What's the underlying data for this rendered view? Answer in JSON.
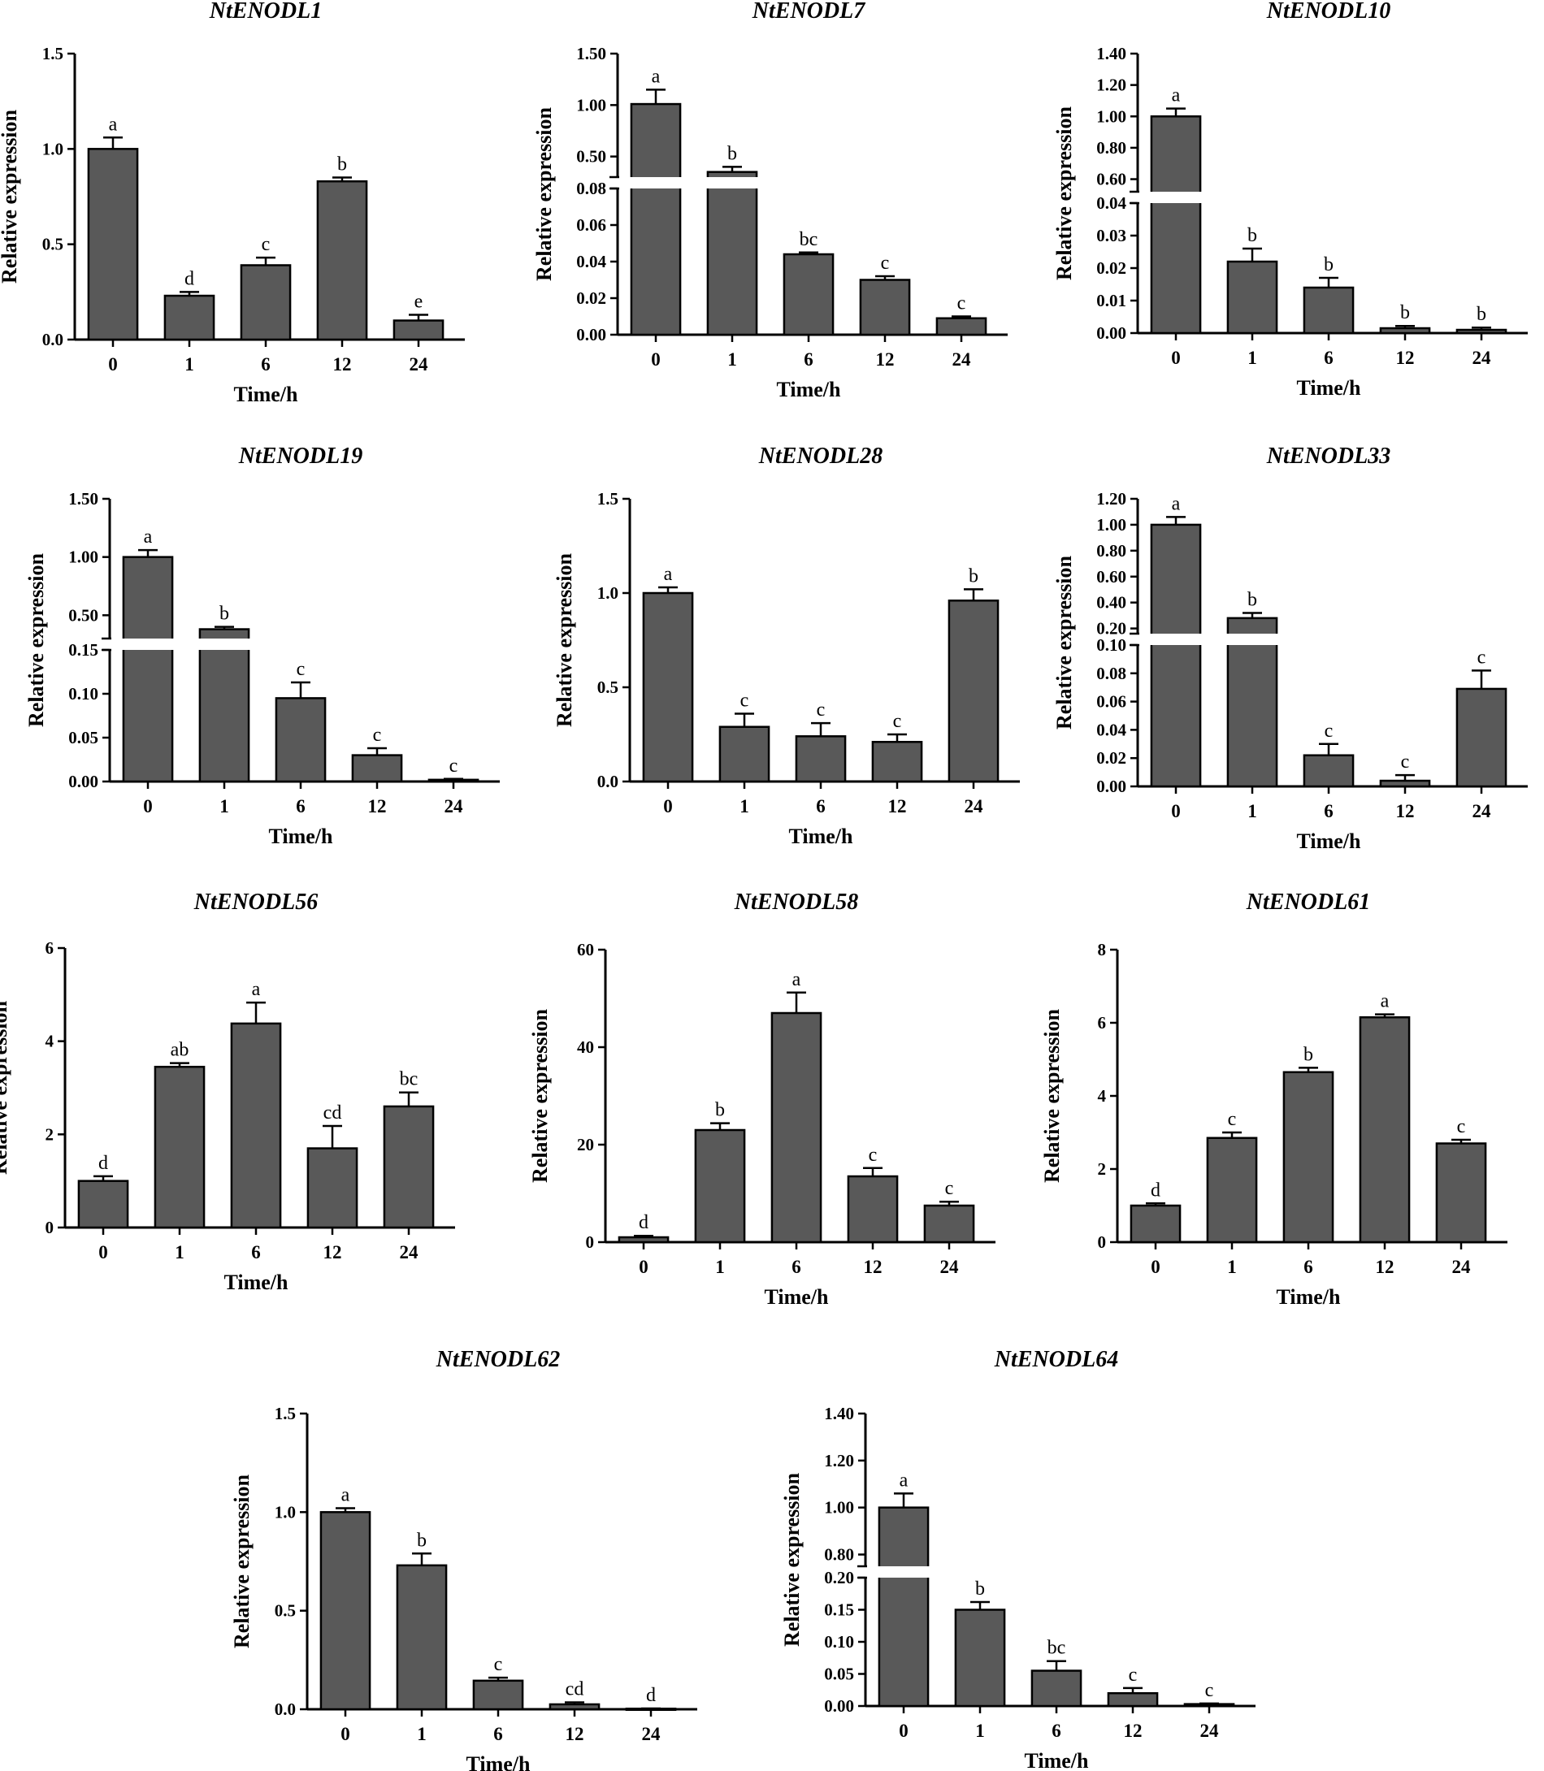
{
  "figure": {
    "x_categories": [
      "0",
      "1",
      "6",
      "12",
      "24"
    ]
  },
  "chart_data": [
    {
      "type": "bar",
      "title": "NtENODL1",
      "xlabel": "Time/h",
      "ylabel": "Relative expression",
      "categories": [
        "0",
        "1",
        "6",
        "12",
        "24"
      ],
      "values": [
        1.0,
        0.23,
        0.39,
        0.83,
        0.1
      ],
      "errors": [
        0.06,
        0.02,
        0.04,
        0.02,
        0.03
      ],
      "letters": [
        "a",
        "d",
        "c",
        "b",
        "e"
      ],
      "ylim": [
        0,
        1.5
      ],
      "yticks": [
        "0.0",
        "0.5",
        "1.0",
        "1.5"
      ]
    },
    {
      "type": "bar",
      "title": "NtENODL7",
      "xlabel": "Time/h",
      "ylabel": "Relative expression",
      "categories": [
        "0",
        "1",
        "6",
        "12",
        "24"
      ],
      "values": [
        1.01,
        0.35,
        0.044,
        0.03,
        0.009
      ],
      "errors": [
        0.14,
        0.05,
        0.001,
        0.002,
        0.001
      ],
      "letters": [
        "a",
        "b",
        "bc",
        "c",
        "c"
      ],
      "ylim": [
        0,
        1.5
      ],
      "axis_break": [
        0.08,
        0.3
      ],
      "yticks_lower": [
        "0.00",
        "0.02",
        "0.04",
        "0.06",
        "0.08"
      ],
      "yticks_upper": [
        "0.50",
        "1.00",
        "1.50"
      ]
    },
    {
      "type": "bar",
      "title": "NtENODL10",
      "xlabel": "Time/h",
      "ylabel": "Relative expression",
      "categories": [
        "0",
        "1",
        "6",
        "12",
        "24"
      ],
      "values": [
        1.0,
        0.022,
        0.014,
        0.0015,
        0.001
      ],
      "errors": [
        0.05,
        0.004,
        0.003,
        0.0007,
        0.0007
      ],
      "letters": [
        "a",
        "b",
        "b",
        "b",
        "b"
      ],
      "ylim": [
        0,
        1.4
      ],
      "axis_break": [
        0.04,
        0.52
      ],
      "yticks_lower": [
        "0.00",
        "0.01",
        "0.02",
        "0.03",
        "0.04"
      ],
      "yticks_upper": [
        "0.60",
        "0.80",
        "1.00",
        "1.20",
        "1.40"
      ]
    },
    {
      "type": "bar",
      "title": "NtENODL19",
      "xlabel": "Time/h",
      "ylabel": "Relative expression",
      "categories": [
        "0",
        "1",
        "6",
        "12",
        "24"
      ],
      "values": [
        1.0,
        0.38,
        0.095,
        0.03,
        0.002
      ],
      "errors": [
        0.06,
        0.02,
        0.018,
        0.008,
        0.001
      ],
      "letters": [
        "a",
        "b",
        "c",
        "c",
        "c"
      ],
      "ylim": [
        0,
        1.5
      ],
      "axis_break": [
        0.15,
        0.3
      ],
      "yticks_lower": [
        "0.00",
        "0.05",
        "0.10",
        "0.15"
      ],
      "yticks_upper": [
        "0.50",
        "1.00",
        "1.50"
      ]
    },
    {
      "type": "bar",
      "title": "NtENODL28",
      "xlabel": "Time/h",
      "ylabel": "Relative expression",
      "categories": [
        "0",
        "1",
        "6",
        "12",
        "24"
      ],
      "values": [
        1.0,
        0.29,
        0.24,
        0.21,
        0.96
      ],
      "errors": [
        0.03,
        0.07,
        0.07,
        0.04,
        0.06
      ],
      "letters": [
        "a",
        "c",
        "c",
        "c",
        "b"
      ],
      "ylim": [
        0,
        1.5
      ],
      "yticks": [
        "0.0",
        "0.5",
        "1.0",
        "1.5"
      ]
    },
    {
      "type": "bar",
      "title": "NtENODL33",
      "xlabel": "Time/h",
      "ylabel": "Relative expression",
      "categories": [
        "0",
        "1",
        "6",
        "12",
        "24"
      ],
      "values": [
        1.0,
        0.28,
        0.022,
        0.004,
        0.069
      ],
      "errors": [
        0.06,
        0.04,
        0.008,
        0.004,
        0.013
      ],
      "letters": [
        "a",
        "b",
        "c",
        "c",
        "c"
      ],
      "ylim": [
        0,
        1.2
      ],
      "axis_break": [
        0.1,
        0.16
      ],
      "yticks_lower": [
        "0.00",
        "0.02",
        "0.04",
        "0.06",
        "0.08",
        "0.10"
      ],
      "yticks_upper": [
        "0.20",
        "0.40",
        "0.60",
        "0.80",
        "1.00",
        "1.20"
      ]
    },
    {
      "type": "bar",
      "title": "NtENODL56",
      "xlabel": "Time/h",
      "ylabel": "Relative expression",
      "categories": [
        "0",
        "1",
        "6",
        "12",
        "24"
      ],
      "values": [
        1.0,
        3.45,
        4.38,
        1.7,
        2.6
      ],
      "errors": [
        0.1,
        0.08,
        0.45,
        0.48,
        0.3
      ],
      "letters": [
        "d",
        "ab",
        "a",
        "cd",
        "bc"
      ],
      "ylim": [
        0,
        6
      ],
      "yticks": [
        "0",
        "2",
        "4",
        "6"
      ]
    },
    {
      "type": "bar",
      "title": "NtENODL58",
      "xlabel": "Time/h",
      "ylabel": "Relative expression",
      "categories": [
        "0",
        "1",
        "6",
        "12",
        "24"
      ],
      "values": [
        1.0,
        23.0,
        47.0,
        13.5,
        7.5
      ],
      "errors": [
        0.3,
        1.4,
        4.2,
        1.7,
        0.8
      ],
      "letters": [
        "d",
        "b",
        "a",
        "c",
        "c"
      ],
      "ylim": [
        0,
        60
      ],
      "yticks": [
        "0",
        "20",
        "40",
        "60"
      ]
    },
    {
      "type": "bar",
      "title": "NtENODL61",
      "xlabel": "Time/h",
      "ylabel": "Relative expression",
      "categories": [
        "0",
        "1",
        "6",
        "12",
        "24"
      ],
      "values": [
        1.0,
        2.85,
        4.65,
        6.15,
        2.7
      ],
      "errors": [
        0.06,
        0.15,
        0.12,
        0.08,
        0.1
      ],
      "letters": [
        "d",
        "c",
        "b",
        "a",
        "c"
      ],
      "ylim": [
        0,
        8
      ],
      "yticks": [
        "0",
        "2",
        "4",
        "6",
        "8"
      ]
    },
    {
      "type": "bar",
      "title": "NtENODL62",
      "xlabel": "Time/h",
      "ylabel": "Relative expression",
      "categories": [
        "0",
        "1",
        "6",
        "12",
        "24"
      ],
      "values": [
        1.0,
        0.73,
        0.145,
        0.025,
        0.003
      ],
      "errors": [
        0.02,
        0.06,
        0.015,
        0.01,
        0.001
      ],
      "letters": [
        "a",
        "b",
        "c",
        "cd",
        "d"
      ],
      "ylim": [
        0,
        1.5
      ],
      "yticks": [
        "0.0",
        "0.5",
        "1.0",
        "1.5"
      ]
    },
    {
      "type": "bar",
      "title": "NtENODL64",
      "xlabel": "Time/h",
      "ylabel": "Relative expression",
      "categories": [
        "0",
        "1",
        "6",
        "12",
        "24"
      ],
      "values": [
        1.0,
        0.15,
        0.055,
        0.02,
        0.003
      ],
      "errors": [
        0.06,
        0.012,
        0.015,
        0.008,
        0.001
      ],
      "letters": [
        "a",
        "b",
        "bc",
        "c",
        "c"
      ],
      "ylim": [
        0,
        1.4
      ],
      "axis_break": [
        0.2,
        0.75
      ],
      "yticks_lower": [
        "0.00",
        "0.05",
        "0.10",
        "0.15",
        "0.20"
      ],
      "yticks_upper": [
        "0.80",
        "1.00",
        "1.20",
        "1.40"
      ]
    }
  ]
}
